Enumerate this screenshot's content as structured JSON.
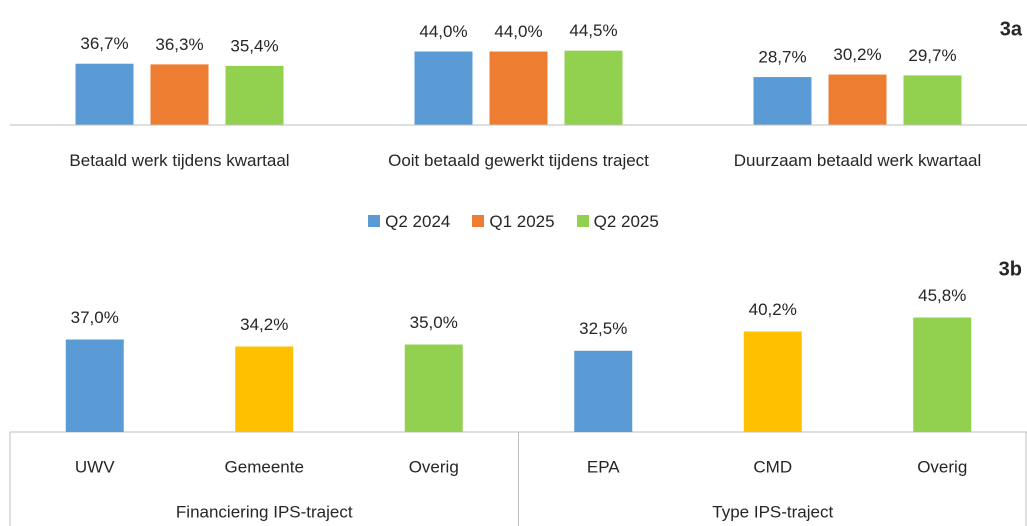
{
  "chart_data": [
    {
      "type": "bar",
      "label": "3a",
      "categories": [
        "Betaald werk tijdens kwartaal",
        "Ooit betaald gewerkt tijdens traject",
        "Duurzaam betaald werk kwartaal"
      ],
      "series": [
        {
          "name": "Q2 2024",
          "color": "#5b9bd5",
          "values": [
            36.7,
            44.0,
            28.7
          ],
          "value_labels": [
            "36,7%",
            "44,0%",
            "28,7%"
          ]
        },
        {
          "name": "Q1 2025",
          "color": "#ed7d31",
          "values": [
            36.3,
            44.0,
            30.2
          ],
          "value_labels": [
            "36,3%",
            "44,0%",
            "30,2%"
          ]
        },
        {
          "name": "Q2 2025",
          "color": "#92d050",
          "values": [
            35.4,
            44.5,
            29.7
          ],
          "value_labels": [
            "35,4%",
            "44,5%",
            "29,7%"
          ]
        }
      ]
    },
    {
      "type": "bar",
      "label": "3b",
      "groups": [
        {
          "name": "Financiering IPS-traject",
          "categories": [
            "UWV",
            "Gemeente",
            "Overig"
          ],
          "values": [
            37.0,
            34.2,
            35.0
          ],
          "value_labels": [
            "37,0%",
            "34,2%",
            "35,0%"
          ],
          "colors": [
            "#5b9bd5",
            "#ffc000",
            "#92d050"
          ]
        },
        {
          "name": "Type IPS-traject",
          "categories": [
            "EPA",
            "CMD",
            "Overig"
          ],
          "values": [
            32.5,
            40.2,
            45.8
          ],
          "value_labels": [
            "32,5%",
            "40,2%",
            "45,8%"
          ],
          "colors": [
            "#5b9bd5",
            "#ffc000",
            "#92d050"
          ]
        }
      ]
    }
  ]
}
